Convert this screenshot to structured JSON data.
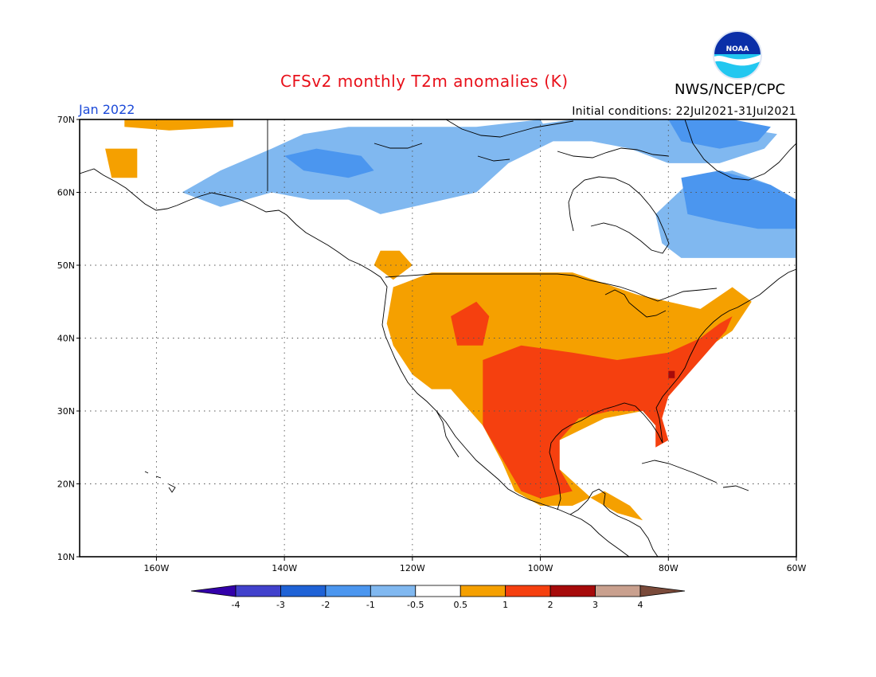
{
  "header": {
    "title": "CFSv2 monthly T2m anomalies (K)",
    "valid_month": "Jan 2022",
    "initial_conditions": "Initial conditions: 22Jul2021-31Jul2021",
    "agency": "NWS/NCEP/CPC",
    "logo_text": "NOAA"
  },
  "map": {
    "projection": "equirectangular",
    "lon_range": [
      -172,
      -60
    ],
    "lat_range": [
      10,
      70
    ],
    "gridlines": "dotted",
    "lat_ticks": [
      {
        "lat": 70,
        "label": "70N"
      },
      {
        "lat": 60,
        "label": "60N"
      },
      {
        "lat": 50,
        "label": "50N"
      },
      {
        "lat": 40,
        "label": "40N"
      },
      {
        "lat": 30,
        "label": "30N"
      },
      {
        "lat": 20,
        "label": "20N"
      },
      {
        "lat": 10,
        "label": "10N"
      }
    ],
    "lon_ticks": [
      {
        "lon": -160,
        "label": "160W"
      },
      {
        "lon": -140,
        "label": "140W"
      },
      {
        "lon": -120,
        "label": "120W"
      },
      {
        "lon": -100,
        "label": "100W"
      },
      {
        "lon": -80,
        "label": "80W"
      },
      {
        "lon": -60,
        "label": "60W"
      }
    ]
  },
  "colorbar": {
    "colors": [
      "#3300aa",
      "#4141cc",
      "#1f62d6",
      "#4b96ef",
      "#80b8f0",
      "#ffffff",
      "#f5a000",
      "#f5400f",
      "#a60a0a",
      "#c9a08e",
      "#7a4a3a"
    ],
    "tick_labels": [
      "-4",
      "-3",
      "-2",
      "-1",
      "-0.5",
      "0.5",
      "1",
      "2",
      "3",
      "4"
    ]
  },
  "anomaly_regions": [
    {
      "name": "us-west-warm",
      "category": "0.5 to 1",
      "color": "#f5a000",
      "polygon": [
        [
          -123,
          47
        ],
        [
          -117,
          49
        ],
        [
          -95,
          49
        ],
        [
          -85,
          46
        ],
        [
          -75,
          44
        ],
        [
          -70,
          47
        ],
        [
          -67,
          45
        ],
        [
          -70,
          41
        ],
        [
          -75,
          38
        ],
        [
          -80,
          32
        ],
        [
          -82,
          28
        ],
        [
          -84,
          30
        ],
        [
          -90,
          29
        ],
        [
          -97,
          26
        ],
        [
          -97,
          22
        ],
        [
          -92,
          18
        ],
        [
          -88,
          16
        ],
        [
          -84,
          15
        ],
        [
          -86,
          17
        ],
        [
          -90,
          19
        ],
        [
          -95,
          17
        ],
        [
          -100,
          17
        ],
        [
          -104,
          19
        ],
        [
          -106,
          23
        ],
        [
          -109,
          28
        ],
        [
          -112,
          31
        ],
        [
          -114,
          33
        ],
        [
          -117,
          33
        ],
        [
          -120,
          35
        ],
        [
          -123,
          39
        ],
        [
          -124,
          42
        ]
      ]
    },
    {
      "name": "south-central-warm",
      "category": "1 to 2",
      "color": "#f5400f",
      "polygon": [
        [
          -109,
          37
        ],
        [
          -103,
          39
        ],
        [
          -95,
          38
        ],
        [
          -88,
          37
        ],
        [
          -80,
          38
        ],
        [
          -75,
          40
        ],
        [
          -72,
          42
        ],
        [
          -70,
          43
        ],
        [
          -71,
          41
        ],
        [
          -75,
          37
        ],
        [
          -77,
          35
        ],
        [
          -80,
          32
        ],
        [
          -81,
          29
        ],
        [
          -80,
          26
        ],
        [
          -82,
          25
        ],
        [
          -82,
          28
        ],
        [
          -84,
          30
        ],
        [
          -89,
          30
        ],
        [
          -94,
          29
        ],
        [
          -97,
          26
        ],
        [
          -97,
          22
        ],
        [
          -95,
          19
        ],
        [
          -100,
          18
        ],
        [
          -103,
          19
        ],
        [
          -105,
          22
        ],
        [
          -107,
          25
        ],
        [
          -109,
          28
        ],
        [
          -109,
          32
        ]
      ]
    },
    {
      "name": "great-basin-warm",
      "category": "1 to 2",
      "color": "#f5400f",
      "polygon": [
        [
          -114,
          43
        ],
        [
          -110,
          45
        ],
        [
          -108,
          43
        ],
        [
          -109,
          39
        ],
        [
          -113,
          39
        ]
      ]
    },
    {
      "name": "carolina-hot",
      "category": "2 to 3",
      "color": "#a60a0a",
      "polygon": [
        [
          -80,
          35.5
        ],
        [
          -79,
          35.5
        ],
        [
          -79,
          34.5
        ],
        [
          -80,
          34.5
        ]
      ]
    },
    {
      "name": "northwest-canada-warm",
      "category": "0.5 to 1",
      "color": "#f5a000",
      "polygon": [
        [
          -125,
          52
        ],
        [
          -122,
          52
        ],
        [
          -120,
          50
        ],
        [
          -123,
          48
        ],
        [
          -126,
          50
        ]
      ]
    },
    {
      "name": "alaska-north-warm",
      "category": "0.5 to 1",
      "color": "#f5a000",
      "polygon": [
        [
          -165,
          70
        ],
        [
          -148,
          70
        ],
        [
          -148,
          69
        ],
        [
          -158,
          68.5
        ],
        [
          -165,
          69
        ]
      ]
    },
    {
      "name": "west-alaska-warm",
      "category": "0.5 to 1",
      "color": "#f5a000",
      "polygon": [
        [
          -168,
          66
        ],
        [
          -163,
          66
        ],
        [
          -163,
          62
        ],
        [
          -167,
          62
        ]
      ]
    },
    {
      "name": "canada-cool",
      "category": "-1 to -0.5",
      "color": "#80b8f0",
      "polygon": [
        [
          -156,
          60
        ],
        [
          -150,
          63
        ],
        [
          -142,
          66
        ],
        [
          -137,
          68
        ],
        [
          -130,
          69
        ],
        [
          -120,
          69
        ],
        [
          -110,
          69
        ],
        [
          -100,
          70
        ],
        [
          -98,
          67
        ],
        [
          -105,
          64
        ],
        [
          -110,
          60
        ],
        [
          -115,
          59
        ],
        [
          -120,
          58
        ],
        [
          -125,
          57
        ],
        [
          -130,
          59
        ],
        [
          -136,
          59
        ],
        [
          -142,
          60
        ],
        [
          -150,
          58
        ]
      ]
    },
    {
      "name": "yukon-cooler",
      "category": "-2 to -1",
      "color": "#4b96ef",
      "polygon": [
        [
          -140,
          65
        ],
        [
          -135,
          66
        ],
        [
          -128,
          65
        ],
        [
          -126,
          63
        ],
        [
          -130,
          62
        ],
        [
          -137,
          63
        ]
      ]
    },
    {
      "name": "arctic-islands-cool",
      "category": "-1 to -0.5",
      "color": "#80b8f0",
      "polygon": [
        [
          -103,
          69
        ],
        [
          -95,
          70
        ],
        [
          -80,
          70
        ],
        [
          -70,
          69
        ],
        [
          -63,
          68
        ],
        [
          -65,
          66
        ],
        [
          -72,
          64
        ],
        [
          -80,
          64
        ],
        [
          -86,
          66
        ],
        [
          -92,
          67
        ],
        [
          -100,
          67
        ]
      ]
    },
    {
      "name": "baffin-cooler",
      "category": "-2 to -1",
      "color": "#4b96ef",
      "polygon": [
        [
          -80,
          70
        ],
        [
          -70,
          70
        ],
        [
          -64,
          69
        ],
        [
          -66,
          67
        ],
        [
          -72,
          66
        ],
        [
          -78,
          67
        ]
      ]
    },
    {
      "name": "quebec-labrador-cool",
      "category": "-1 to -0.5",
      "color": "#80b8f0",
      "polygon": [
        [
          -82,
          57
        ],
        [
          -76,
          62
        ],
        [
          -70,
          63
        ],
        [
          -64,
          61
        ],
        [
          -60,
          58
        ],
        [
          -60,
          51
        ],
        [
          -70,
          51
        ],
        [
          -78,
          51
        ],
        [
          -81,
          53
        ]
      ]
    },
    {
      "name": "labrador-cooler",
      "category": "-2 to -1",
      "color": "#4b96ef",
      "polygon": [
        [
          -78,
          62
        ],
        [
          -72,
          63
        ],
        [
          -64,
          61
        ],
        [
          -60,
          59
        ],
        [
          -60,
          55
        ],
        [
          -66,
          55
        ],
        [
          -72,
          56
        ],
        [
          -77,
          57
        ]
      ]
    }
  ]
}
